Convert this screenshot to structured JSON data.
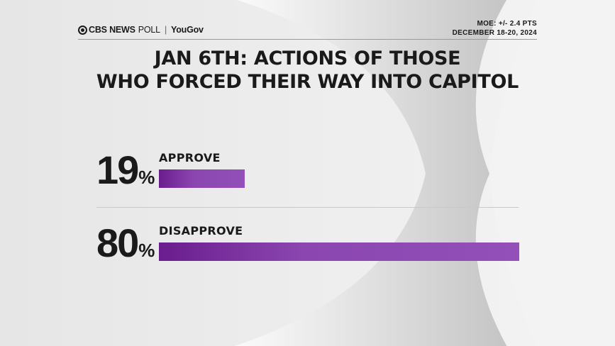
{
  "header": {
    "brand": "CBS NEWS",
    "poll": "POLL",
    "separator": "|",
    "partner": "YouGov",
    "moe": "MOE: +/- 2.4 PTS",
    "dates": "DECEMBER 18-20, 2024"
  },
  "title_line1": "JAN 6TH: ACTIONS OF THOSE",
  "title_line2": "WHO FORCED THEIR WAY INTO CAPITOL",
  "rows": [
    {
      "label": "APPROVE",
      "value": "19",
      "suffix": "%"
    },
    {
      "label": "DISAPPROVE",
      "value": "80",
      "suffix": "%"
    }
  ],
  "chart_data": {
    "type": "bar",
    "orientation": "horizontal",
    "title": "JAN 6TH: ACTIONS OF THOSE WHO FORCED THEIR WAY INTO CAPITOL",
    "categories": [
      "APPROVE",
      "DISAPPROVE"
    ],
    "values": [
      19,
      80
    ],
    "unit": "%",
    "xlim": [
      0,
      80
    ],
    "colors": {
      "bar_start": "#6a1d8e",
      "bar_end": "#9250b8"
    },
    "grid": false,
    "legend": "none"
  }
}
